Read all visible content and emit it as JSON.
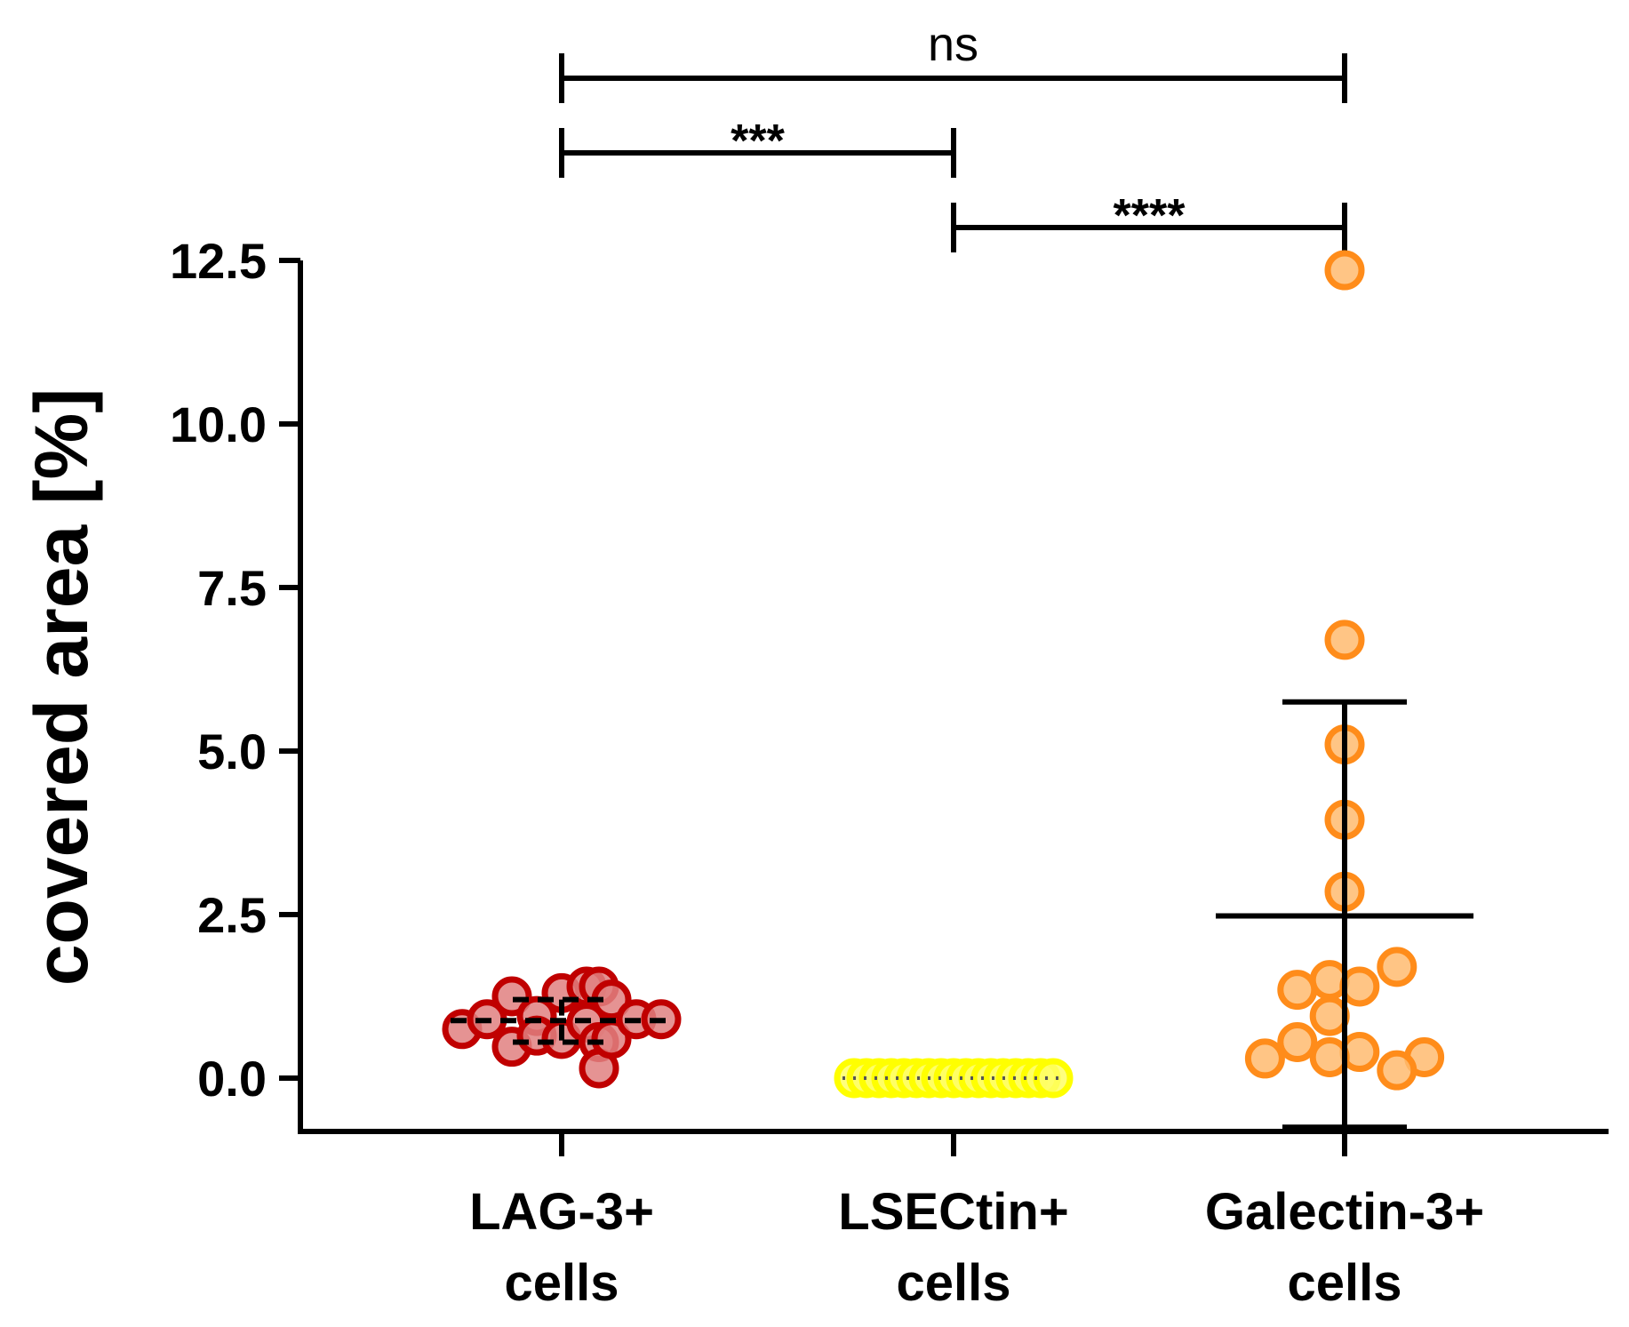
{
  "chart_data": {
    "type": "scatter",
    "subtype": "dot-plot-with-mean-sd",
    "title": "",
    "xlabel": "",
    "ylabel": "covered area [%]",
    "ylim": [
      -0.8,
      12.5
    ],
    "yticks": [
      "0.0",
      "2.5",
      "5.0",
      "7.5",
      "10.0",
      "12.5"
    ],
    "grid": false,
    "legend": "none",
    "categories": [
      {
        "line1": "LAG-3+",
        "line2": "cells"
      },
      {
        "line1": "LSECtin+",
        "line2": "cells"
      },
      {
        "line1": "Galectin-3+",
        "line2": "cells"
      }
    ],
    "series": [
      {
        "category": "LAG-3+ cells",
        "color": "#c00000",
        "fill": "#e08080",
        "mean": 0.88,
        "sd_low": 0.55,
        "sd_high": 1.2,
        "points": [
          {
            "y": 0.75,
            "j": -4
          },
          {
            "y": 0.9,
            "j": -3
          },
          {
            "y": 1.25,
            "j": -2
          },
          {
            "y": 0.48,
            "j": -2
          },
          {
            "y": 0.95,
            "j": -1
          },
          {
            "y": 0.65,
            "j": -1
          },
          {
            "y": 1.3,
            "j": 0
          },
          {
            "y": 0.6,
            "j": 0
          },
          {
            "y": 1.4,
            "j": 1
          },
          {
            "y": 0.85,
            "j": 1
          },
          {
            "y": 1.4,
            "j": 1.5
          },
          {
            "y": 0.55,
            "j": 1.5
          },
          {
            "y": 0.15,
            "j": 1.5
          },
          {
            "y": 1.2,
            "j": 2
          },
          {
            "y": 0.6,
            "j": 2
          },
          {
            "y": 0.9,
            "j": 3
          },
          {
            "y": 0.9,
            "j": 4
          }
        ]
      },
      {
        "category": "LSECtin+ cells",
        "color": "#ffff00",
        "fill": "#ffff66",
        "mean": 0.0,
        "sd_low": 0.0,
        "sd_high": 0.0,
        "points": [
          {
            "y": 0.0,
            "j": -4
          },
          {
            "y": 0.0,
            "j": -3.5
          },
          {
            "y": 0.0,
            "j": -3
          },
          {
            "y": 0.0,
            "j": -2.5
          },
          {
            "y": 0.0,
            "j": -2
          },
          {
            "y": 0.0,
            "j": -1.5
          },
          {
            "y": 0.0,
            "j": -1
          },
          {
            "y": 0.0,
            "j": -0.5
          },
          {
            "y": 0.0,
            "j": 0
          },
          {
            "y": 0.0,
            "j": 0.5
          },
          {
            "y": 0.0,
            "j": 1
          },
          {
            "y": 0.0,
            "j": 1.5
          },
          {
            "y": 0.0,
            "j": 2
          },
          {
            "y": 0.0,
            "j": 2.5
          },
          {
            "y": 0.0,
            "j": 3
          },
          {
            "y": 0.0,
            "j": 3.5
          },
          {
            "y": 0.0,
            "j": 4
          }
        ]
      },
      {
        "category": "Galectin-3+ cells",
        "color": "#ff8c1a",
        "fill": "#ffbb70",
        "mean": 2.48,
        "sd_low": -0.75,
        "sd_high": 5.75,
        "points": [
          {
            "y": 12.35,
            "j": 0
          },
          {
            "y": 6.7,
            "j": 0
          },
          {
            "y": 5.1,
            "j": 0
          },
          {
            "y": 3.95,
            "j": 0
          },
          {
            "y": 2.85,
            "j": 0
          },
          {
            "y": 1.7,
            "j": 2.1
          },
          {
            "y": 1.5,
            "j": -0.6
          },
          {
            "y": 1.4,
            "j": 0.6
          },
          {
            "y": 1.35,
            "j": -1.9
          },
          {
            "y": 0.95,
            "j": -0.6
          },
          {
            "y": 0.55,
            "j": -1.9
          },
          {
            "y": 0.4,
            "j": 0.6
          },
          {
            "y": 0.32,
            "j": -0.6
          },
          {
            "y": 0.3,
            "j": -3.2
          },
          {
            "y": 0.32,
            "j": 3.2
          },
          {
            "y": 0.12,
            "j": 2.1
          }
        ]
      }
    ],
    "significance": [
      {
        "label": "ns",
        "from": 0,
        "to": 2,
        "level": 0
      },
      {
        "label": "***",
        "from": 0,
        "to": 1,
        "level": 1
      },
      {
        "label": "****",
        "from": 1,
        "to": 2,
        "level": 2
      }
    ]
  }
}
